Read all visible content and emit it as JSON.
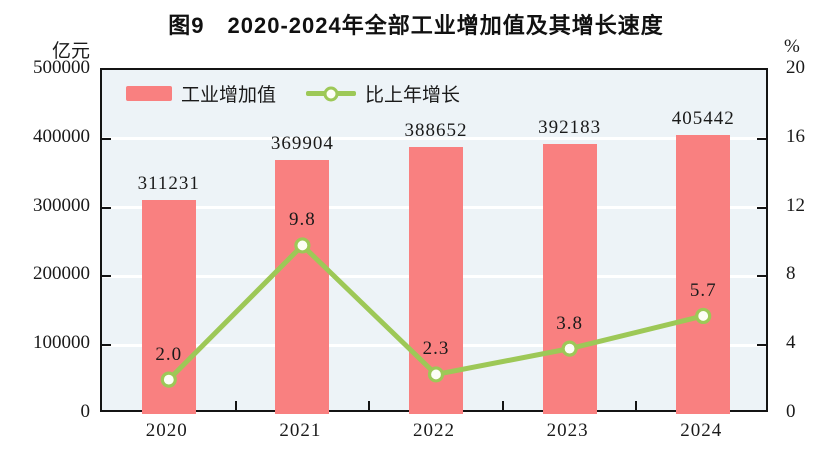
{
  "title": "图9　2020-2024年全部工业增加值及其增长速度",
  "left_axis": {
    "unit": "亿元",
    "ticks": [
      "500000",
      "400000",
      "300000",
      "200000",
      "100000",
      "0"
    ]
  },
  "right_axis": {
    "unit": "%",
    "ticks": [
      "20",
      "16",
      "12",
      "8",
      "4",
      "0"
    ]
  },
  "legend": [
    {
      "label": "工业增加值",
      "type": "bar"
    },
    {
      "label": "比上年增长",
      "type": "line"
    }
  ],
  "chart_data": {
    "type": "bar+line",
    "title": "图9　2020-2024年全部工业增加值及其增长速度",
    "categories": [
      "2020",
      "2021",
      "2022",
      "2023",
      "2024"
    ],
    "series": [
      {
        "name": "工业增加值",
        "type": "bar",
        "axis": "left",
        "unit": "亿元",
        "values": [
          311231,
          369904,
          388652,
          392183,
          405442
        ]
      },
      {
        "name": "比上年增长",
        "type": "line",
        "axis": "right",
        "unit": "%",
        "values": [
          2.0,
          9.8,
          2.3,
          3.8,
          5.7
        ]
      }
    ],
    "left_ylim": [
      0,
      500000
    ],
    "right_ylim": [
      0,
      20
    ],
    "grid": true,
    "legend_position": "top-left-inside"
  },
  "colors": {
    "bar": "#f98080",
    "line": "#9dc857",
    "marker_fill": "#fdfef5",
    "plot_background": "#edf3f7",
    "gridline": "#ffffff",
    "axis": "#141414",
    "text": "#1a1a1a"
  }
}
